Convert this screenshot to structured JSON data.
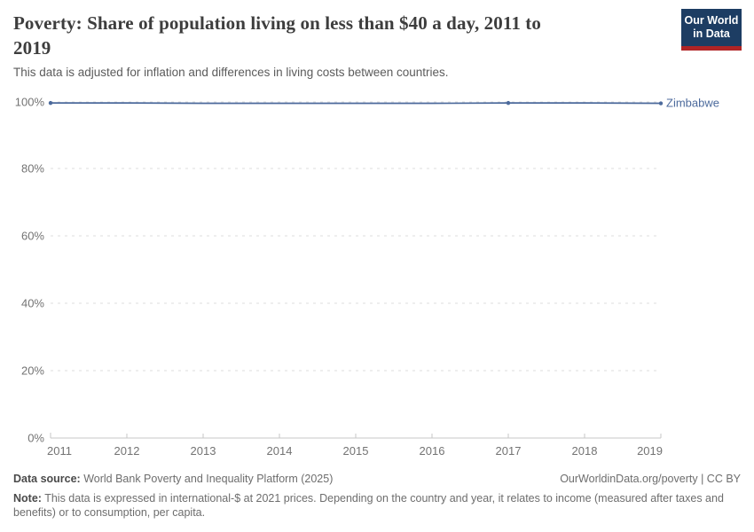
{
  "header": {
    "title": "Poverty: Share of population living on less than $40 a day, 2011 to\n2019",
    "subtitle": "This data is adjusted for inflation and differences in living costs between countries.",
    "logo": {
      "line1": "Our World",
      "line2": "in Data"
    }
  },
  "chart_data": {
    "type": "line",
    "title": "Poverty: Share of population living on less than $40 a day, 2011 to 2019",
    "subtitle": "This data is adjusted for inflation and differences in living costs between countries.",
    "xlabel": "",
    "ylabel": "",
    "xlim": [
      2011,
      2019
    ],
    "ylim": [
      0,
      100
    ],
    "grid": "horizontal dashed",
    "legend_position": "end-of-line label",
    "xticks": [
      "2011",
      "2012",
      "2013",
      "2014",
      "2015",
      "2016",
      "2017",
      "2018",
      "2019"
    ],
    "yticks": [
      "100%",
      "80%",
      "60%",
      "40%",
      "20%",
      "0%"
    ],
    "series": [
      {
        "name": "Zimbabwe",
        "color": "#4c6a9c",
        "x": [
          2011,
          2012,
          2013,
          2014,
          2015,
          2016,
          2017,
          2018,
          2019
        ],
        "values": [
          99.7,
          99.7,
          99.6,
          99.6,
          99.6,
          99.6,
          99.7,
          99.7,
          99.6
        ],
        "marker_years": [
          2011,
          2017,
          2019
        ]
      }
    ]
  },
  "footer": {
    "datasource_label": "Data source:",
    "datasource_text": " World Bank Poverty and Inequality Platform (2025)",
    "rights": "OurWorldinData.org/poverty | CC BY",
    "note_label": "Note:",
    "note_text": " This data is expressed in international-$ at 2021 prices. Depending on the country and year, it relates to income (measured after taxes and benefits) or to consumption, per capita."
  },
  "colors": {
    "line_blue": "#4c6a9c",
    "logo_navy": "#1d3d63",
    "logo_red": "#b02425",
    "title_text": "#3d3d3d",
    "subtitle_text": "#5b5b5b",
    "axis_text": "#737373",
    "grid_line": "#dcdcdc",
    "axis_line": "#c7c7c7",
    "footer_text": "#6d6d6d",
    "footer_bold": "#4a4a4a"
  }
}
